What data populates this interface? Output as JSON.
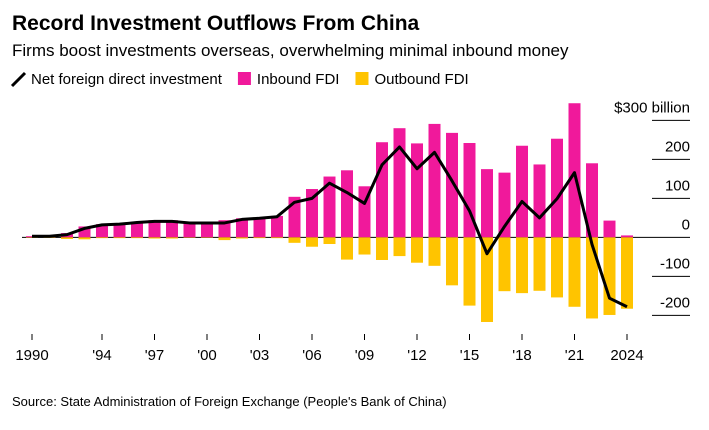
{
  "chart_data": {
    "type": "bar-line",
    "title": "Record Investment Outflows From China",
    "subtitle": "Firms boost investments overseas, overwhelming minimal inbound money",
    "source": "Source: State Administration of Foreign Exchange (People's Bank of China)",
    "x": [
      1990,
      1991,
      1992,
      1993,
      1994,
      1995,
      1996,
      1997,
      1998,
      1999,
      2000,
      2001,
      2002,
      2003,
      2004,
      2005,
      2006,
      2007,
      2008,
      2009,
      2010,
      2011,
      2012,
      2013,
      2014,
      2015,
      2016,
      2017,
      2018,
      2019,
      2020,
      2021,
      2022,
      2023,
      2024
    ],
    "series": [
      {
        "name": "Net foreign direct investment",
        "color": "#000000",
        "kind": "line",
        "values": [
          3,
          3,
          7,
          23,
          32,
          34,
          38,
          41,
          41,
          37,
          37,
          37,
          46,
          49,
          53,
          90,
          100,
          139,
          115,
          87,
          186,
          232,
          176,
          218,
          145,
          68,
          -42,
          28,
          92,
          50,
          99,
          166,
          -18,
          -156,
          -178
        ]
      },
      {
        "name": "Inbound FDI",
        "color": "#f0199b",
        "kind": "bar",
        "values": [
          3,
          4,
          11,
          28,
          34,
          36,
          40,
          44,
          44,
          38,
          38,
          44,
          49,
          51,
          55,
          104,
          124,
          156,
          172,
          131,
          244,
          280,
          241,
          291,
          268,
          242,
          175,
          166,
          235,
          187,
          253,
          344,
          190,
          43,
          5
        ]
      },
      {
        "name": "Outbound FDI",
        "color": "#ffc400",
        "kind": "bar",
        "values": [
          -1,
          -1,
          -4,
          -5,
          -2,
          -2,
          -2,
          -3,
          -3,
          -1,
          -1,
          -7,
          -3,
          -2,
          -2,
          -14,
          -24,
          -17,
          -57,
          -44,
          -58,
          -48,
          -65,
          -73,
          -123,
          -175,
          -217,
          -138,
          -143,
          -137,
          -154,
          -178,
          -208,
          -199,
          -183
        ]
      }
    ],
    "xlim": [
      1990,
      2024
    ],
    "xticks": [
      1990,
      {
        "value": 1994,
        "label": "'94"
      },
      {
        "value": 1997,
        "label": "'97"
      },
      {
        "value": 2000,
        "label": "'00"
      },
      {
        "value": 2003,
        "label": "'03"
      },
      {
        "value": 2006,
        "label": "'06"
      },
      {
        "value": 2009,
        "label": "'09"
      },
      {
        "value": 2012,
        "label": "'12"
      },
      {
        "value": 2015,
        "label": "'15"
      },
      {
        "value": 2018,
        "label": "'18"
      },
      {
        "value": 2021,
        "label": "'21"
      },
      2024
    ],
    "ylim": [
      -235,
      360
    ],
    "yticks": [
      -200,
      -100,
      0,
      100,
      200,
      {
        "value": 300,
        "label": "$300 billion"
      }
    ],
    "grid": true
  }
}
